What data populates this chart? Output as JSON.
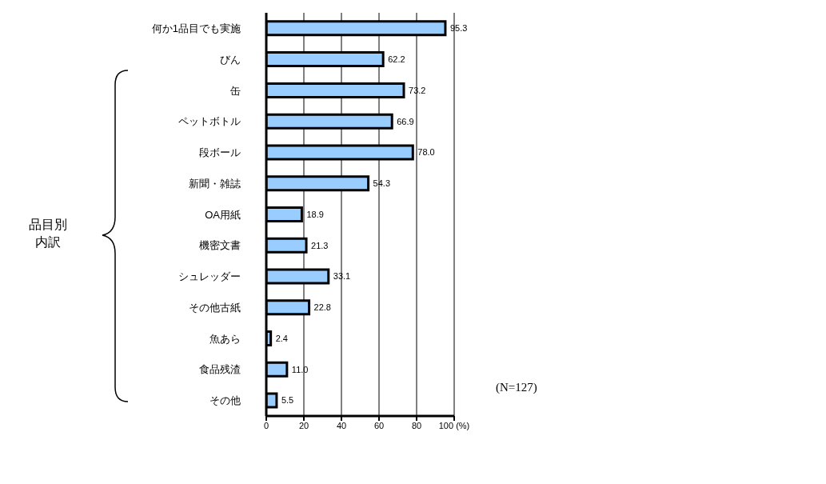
{
  "chart_data": {
    "type": "bar",
    "orientation": "horizontal",
    "categories": [
      "何か1品目でも実施",
      "びん",
      "缶",
      "ペットボトル",
      "段ボール",
      "新聞・雑誌",
      "OA用紙",
      "機密文書",
      "シュレッダー",
      "その他古紙",
      "魚あら",
      "食品残渣",
      "その他"
    ],
    "values": [
      95.3,
      62.2,
      73.2,
      66.9,
      78.0,
      54.3,
      18.9,
      21.3,
      33.1,
      22.8,
      2.4,
      11.0,
      5.5
    ],
    "value_labels": [
      "95.3",
      "62.2",
      "73.2",
      "66.9",
      "78.0",
      "54.3",
      "18.9",
      "21.3",
      "33.1",
      "22.8",
      "2.4",
      "11.0",
      "5.5"
    ],
    "color": "#99ccff",
    "xlim": [
      0,
      100
    ],
    "xticks": [
      0,
      20,
      40,
      60,
      80,
      {
        "value": 100,
        "label": "100 (%)"
      }
    ],
    "grid": "x",
    "annotations": [
      "品目別内訳",
      "(N=127)"
    ]
  }
}
